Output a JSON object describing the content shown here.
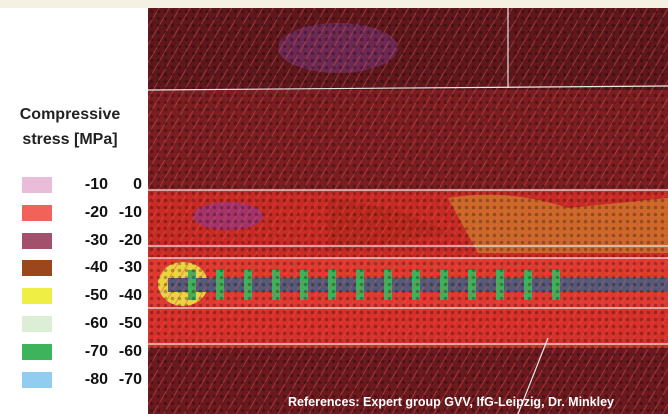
{
  "legend": {
    "title": [
      "Compressive",
      "stress [MPa]"
    ],
    "items": [
      {
        "from": -10,
        "to": 0,
        "color": "#e9bcd9"
      },
      {
        "from": -20,
        "to": -10,
        "color": "#f0625a"
      },
      {
        "from": -30,
        "to": -20,
        "color": "#a2506c"
      },
      {
        "from": -40,
        "to": -30,
        "color": "#9c461c"
      },
      {
        "from": -50,
        "to": -40,
        "color": "#eeee44"
      },
      {
        "from": -60,
        "to": -50,
        "color": "#dcefd6"
      },
      {
        "from": -70,
        "to": -60,
        "color": "#3db35c"
      },
      {
        "from": -80,
        "to": -70,
        "color": "#90cdf0"
      }
    ]
  },
  "figure": {
    "reference": "References: Expert group GVV, IfG-Leipzig, Dr. Minkley"
  }
}
